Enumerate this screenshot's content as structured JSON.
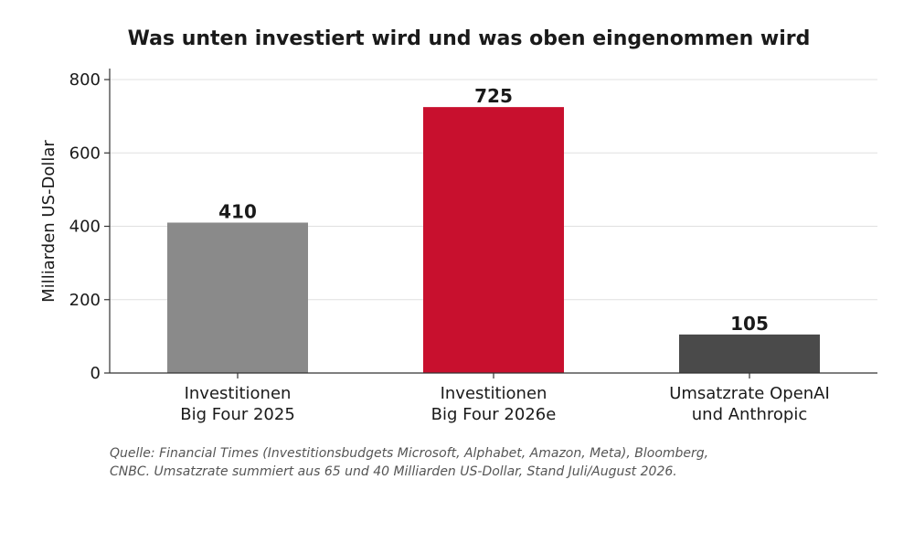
{
  "chart_data": {
    "type": "bar",
    "title": "Was unten investiert wird und was oben eingenommen wird",
    "ylabel": "Milliarden US-Dollar",
    "xlabel": "",
    "ylim": [
      0,
      830
    ],
    "yticks": [
      0,
      200,
      400,
      600,
      800
    ],
    "grid": true,
    "categories": [
      [
        "Investitionen",
        "Big Four 2025"
      ],
      [
        "Investitionen",
        "Big Four 2026e"
      ],
      [
        "Umsatzrate OpenAI",
        "und Anthropic"
      ]
    ],
    "values": [
      410,
      725,
      105
    ],
    "data_labels": [
      "410",
      "725",
      "105"
    ],
    "colors": [
      "#8a8a8a",
      "#c8102e",
      "#4a4a4a"
    ]
  },
  "source": {
    "lines": [
      "Quelle: Financial Times (Investitionsbudgets Microsoft, Alphabet, Amazon, Meta), Bloomberg,",
      "CNBC. Umsatzrate summiert aus 65 und 40 Milliarden US-Dollar, Stand Juli/August 2026."
    ]
  }
}
